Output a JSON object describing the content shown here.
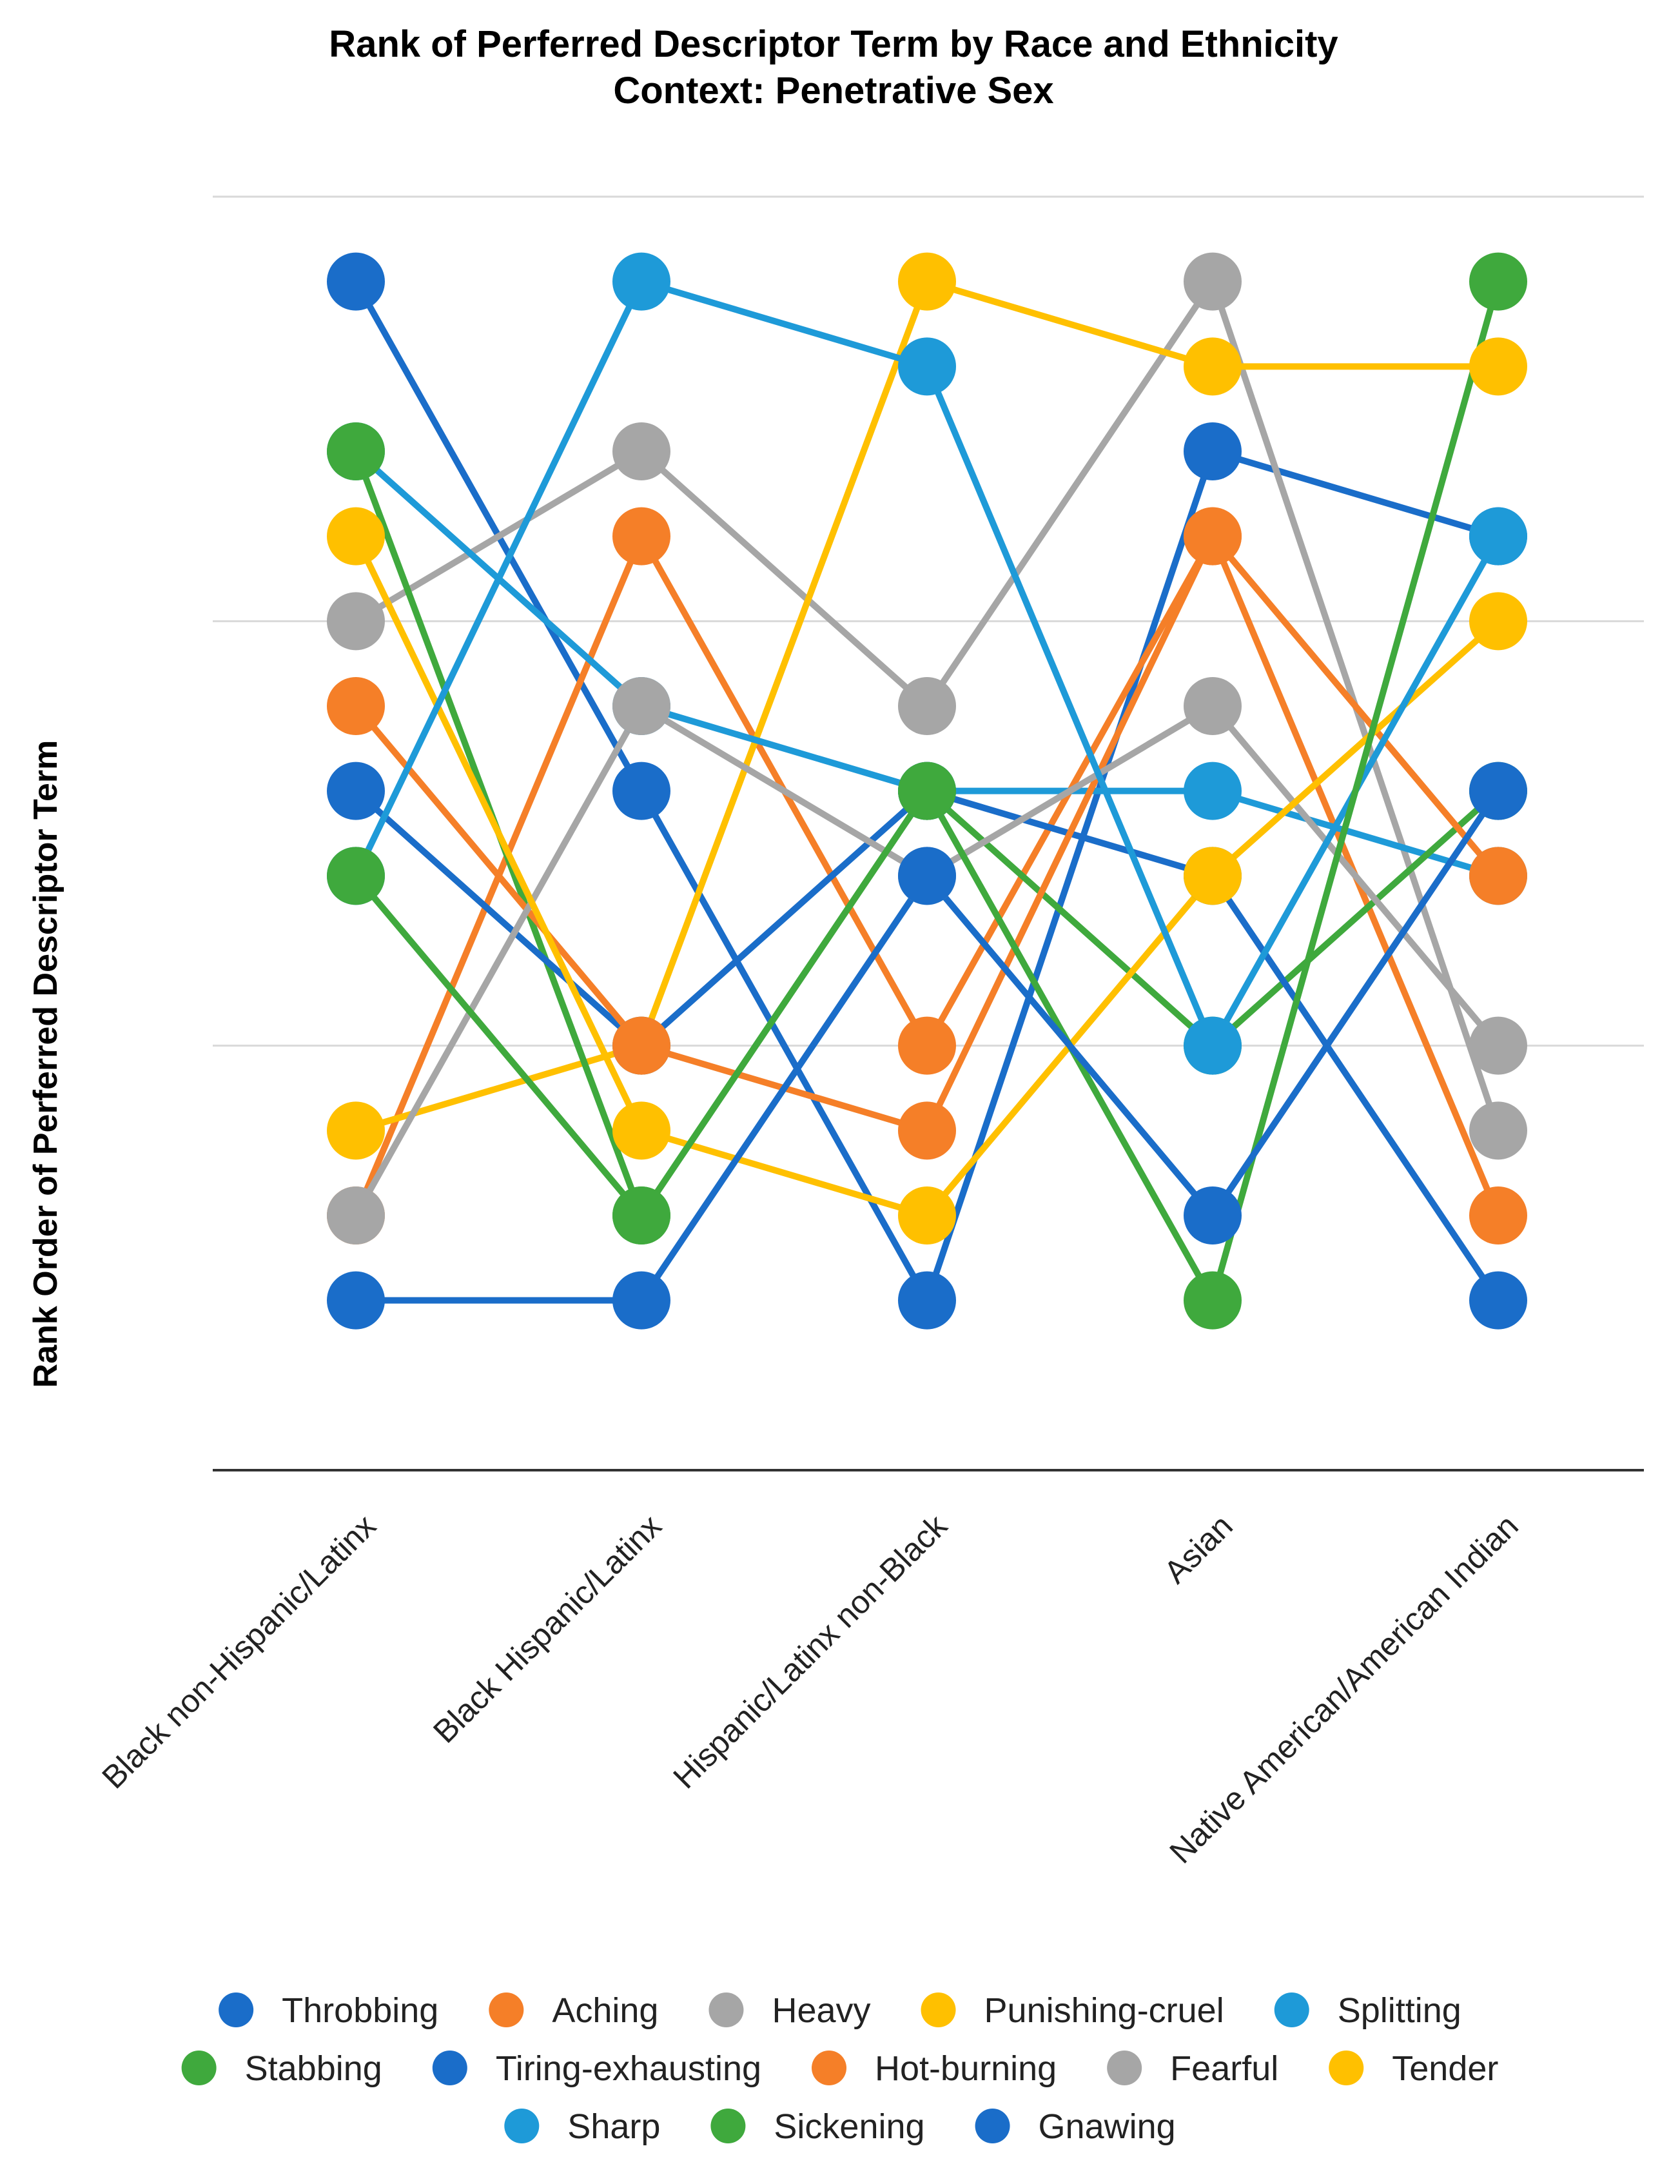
{
  "chart_data": {
    "type": "line",
    "title": "Rank of Perferred Descriptor Term by Race and Ethnicity",
    "subtitle": "Context: Penetrative Sex",
    "xlabel": "",
    "ylabel": "Rank Order of Perferred Descriptor Term",
    "categories": [
      "Black non-Hispanic/Latinx",
      "Black Hispanic/Latinx",
      "Hispanic/Latinx non-Black",
      "Asian",
      "Native American/American Indian"
    ],
    "ylim": [
      0,
      15
    ],
    "y_reversed": true,
    "grid": true,
    "show_y_tick_labels": false,
    "legend_position": "bottom",
    "series": [
      {
        "name": "Throbbing",
        "color": "#1a6dc9",
        "values": [
          1,
          7,
          13,
          3,
          4
        ]
      },
      {
        "name": "Aching",
        "color": "#f57f28",
        "values": [
          12,
          4,
          10,
          4,
          12
        ]
      },
      {
        "name": "Heavy",
        "color": "#a6a6a6",
        "values": [
          5,
          3,
          6,
          1,
          11
        ]
      },
      {
        "name": "Punishing-cruel",
        "color": "#ffc000",
        "values": [
          11,
          10,
          1,
          2,
          2
        ]
      },
      {
        "name": "Splitting",
        "color": "#1e9ad8",
        "values": [
          3,
          6,
          7,
          7,
          8
        ]
      },
      {
        "name": "Stabbing",
        "color": "#3fa93d",
        "values": [
          3,
          12,
          7,
          10,
          7
        ]
      },
      {
        "name": "Tiring-exhausting",
        "color": "#1a6dc9",
        "values": [
          7,
          10,
          7,
          8,
          13
        ]
      },
      {
        "name": "Hot-burning",
        "color": "#f57f28",
        "values": [
          6,
          10,
          11,
          4,
          8
        ]
      },
      {
        "name": "Fearful",
        "color": "#a6a6a6",
        "values": [
          12,
          6,
          8,
          6,
          10
        ]
      },
      {
        "name": "Tender",
        "color": "#ffc000",
        "values": [
          4,
          11,
          12,
          8,
          5
        ]
      },
      {
        "name": "Sharp",
        "color": "#1e9ad8",
        "values": [
          8,
          1,
          2,
          10,
          4
        ]
      },
      {
        "name": "Sickening",
        "color": "#3fa93d",
        "values": [
          8,
          12,
          7,
          13,
          1
        ]
      },
      {
        "name": "Gnawing",
        "color": "#1a6dc9",
        "values": [
          13,
          13,
          8,
          12,
          7
        ]
      }
    ]
  }
}
